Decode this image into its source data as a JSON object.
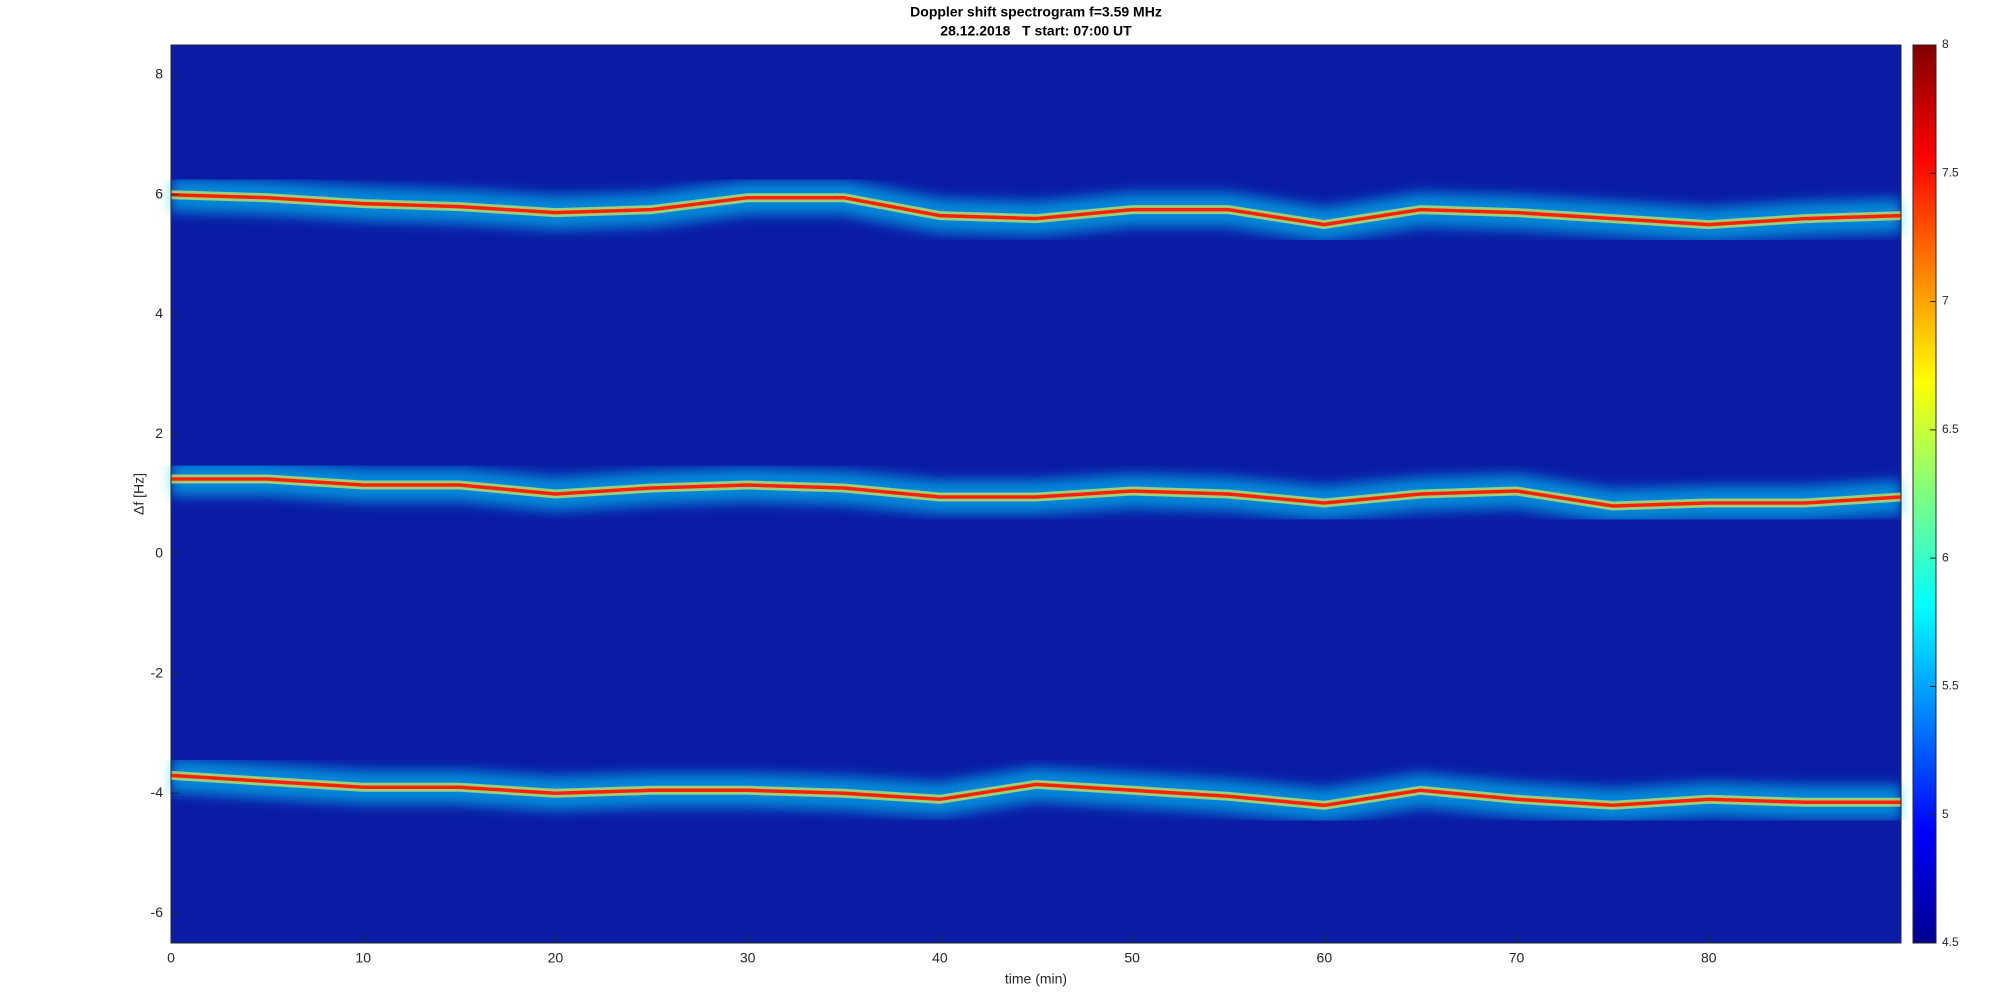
{
  "chart_data": {
    "type": "spectrogram",
    "title": "Doppler shift spectrogram f=3.59 MHz",
    "subtitle": "28.12.2018   T start: 07:00 UT",
    "xlabel": "time (min)",
    "ylabel": "Δf [Hz]",
    "x": [
      0,
      5,
      10,
      15,
      20,
      25,
      30,
      35,
      40,
      45,
      50,
      55,
      60,
      65,
      70,
      75,
      80,
      85,
      90
    ],
    "series": [
      {
        "color": "#ff2000",
        "values": [
          6.0,
          5.95,
          5.85,
          5.8,
          5.7,
          5.75,
          5.95,
          5.95,
          5.65,
          5.6,
          5.75,
          5.75,
          5.5,
          5.75,
          5.7,
          5.6,
          5.5,
          5.6,
          5.65
        ]
      },
      {
        "color": "#ff2000",
        "values": [
          1.25,
          1.25,
          1.15,
          1.15,
          1.0,
          1.1,
          1.15,
          1.1,
          0.95,
          0.95,
          1.05,
          1.0,
          0.85,
          1.0,
          1.05,
          0.8,
          0.85,
          0.85,
          0.95
        ]
      },
      {
        "color": "#ff2000",
        "values": [
          -3.7,
          -3.8,
          -3.9,
          -3.9,
          -4.0,
          -3.95,
          -3.95,
          -4.0,
          -4.1,
          -3.85,
          -3.95,
          -4.05,
          -4.2,
          -3.95,
          -4.1,
          -4.2,
          -4.1,
          -4.15,
          -4.15
        ]
      }
    ],
    "xlim": [
      0,
      90
    ],
    "xticks": [
      0,
      10,
      20,
      30,
      40,
      50,
      60,
      70,
      80
    ],
    "ylim": [
      -6.5,
      8.5
    ],
    "yticks": [
      -6,
      -4,
      -2,
      0,
      2,
      4,
      6,
      8
    ],
    "colormap": "jet",
    "clim": [
      4.5,
      8
    ],
    "cticks": [
      4.5,
      5,
      5.5,
      6,
      6.5,
      7,
      7.5,
      8
    ]
  }
}
